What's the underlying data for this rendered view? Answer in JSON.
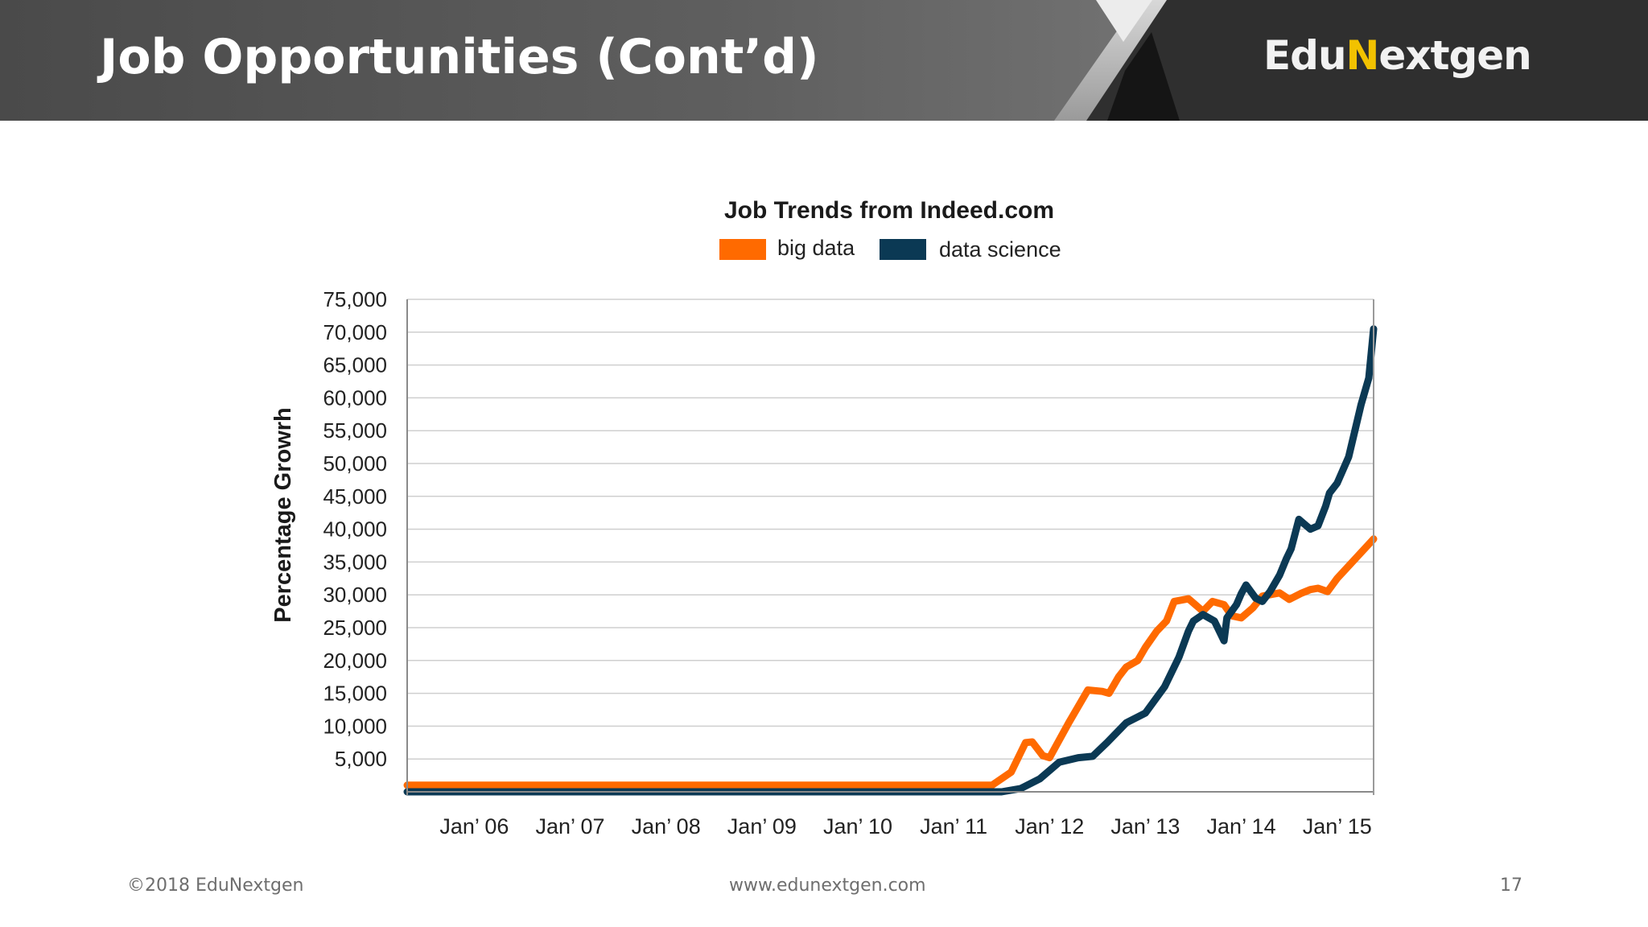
{
  "slide": {
    "title": "Job Opportunities (Cont’d)",
    "logo_prefix": "Edu",
    "logo_mark": "N",
    "logo_suffix": "extgen"
  },
  "footer": {
    "copyright": "©2018 EduNextgen",
    "url": "www.edunextgen.com",
    "page_number": "17"
  },
  "colors": {
    "big_data": "#ff6a00",
    "data_science": "#0b3954",
    "grid": "#cfcfcf"
  },
  "chart_data": {
    "type": "line",
    "title": "Job Trends from Indeed.com",
    "ylabel": "Percentage Growrh",
    "xlabel": "",
    "ylim": [
      0,
      75000
    ],
    "xlim": [
      2005.3,
      2015.38
    ],
    "y_ticks": [
      5000,
      10000,
      15000,
      20000,
      25000,
      30000,
      35000,
      40000,
      45000,
      50000,
      55000,
      60000,
      65000,
      70000,
      75000
    ],
    "y_tick_labels": [
      "5,000",
      "10,000",
      "15,000",
      "20,000",
      "25,000",
      "30,000",
      "35,000",
      "40,000",
      "45,000",
      "50,000",
      "55,000",
      "60,000",
      "65,000",
      "70,000",
      "75,000"
    ],
    "x_ticks": [
      2006,
      2007,
      2008,
      2009,
      2010,
      2011,
      2012,
      2013,
      2014,
      2015
    ],
    "x_tick_labels": [
      "Jan’ 06",
      "Jan’ 07",
      "Jan’ 08",
      "Jan’ 09",
      "Jan’ 10",
      "Jan’ 11",
      "Jan’ 12",
      "Jan’ 13",
      "Jan’ 14",
      "Jan’ 15"
    ],
    "grid": true,
    "legend_position": "top-center",
    "series": [
      {
        "name": "big data",
        "color": "#ff6a00",
        "x": [
          2005.3,
          2011.4,
          2011.6,
          2011.75,
          2011.82,
          2011.93,
          2012.0,
          2012.2,
          2012.4,
          2012.55,
          2012.62,
          2012.72,
          2012.8,
          2012.92,
          2013.0,
          2013.12,
          2013.22,
          2013.3,
          2013.45,
          2013.52,
          2013.6,
          2013.7,
          2013.82,
          2013.9,
          2014.0,
          2014.12,
          2014.22,
          2014.4,
          2014.5,
          2014.62,
          2014.72,
          2014.8,
          2014.9,
          2015.0,
          2015.38
        ],
        "values": [
          1000,
          1000,
          3000,
          7500,
          7600,
          5500,
          5200,
          10500,
          15500,
          15300,
          15000,
          17500,
          19000,
          20000,
          22000,
          24500,
          26000,
          29000,
          29400,
          28500,
          27500,
          29000,
          28500,
          26800,
          26500,
          28000,
          29800,
          30300,
          29300,
          30200,
          30800,
          31000,
          30500,
          32500,
          38500
        ]
      },
      {
        "name": "data science",
        "color": "#0b3954",
        "x": [
          2005.3,
          2011.5,
          2011.7,
          2011.9,
          2012.1,
          2012.3,
          2012.45,
          2012.6,
          2012.8,
          2013.0,
          2013.2,
          2013.35,
          2013.45,
          2013.5,
          2013.6,
          2013.72,
          2013.82,
          2013.85,
          2013.95,
          2014.0,
          2014.05,
          2014.15,
          2014.22,
          2014.3,
          2014.4,
          2014.47,
          2014.52,
          2014.6,
          2014.68,
          2014.72,
          2014.8,
          2014.88,
          2014.92,
          2015.0,
          2015.12,
          2015.25,
          2015.33,
          2015.38
        ],
        "values": [
          0,
          0,
          500,
          2000,
          4500,
          5200,
          5400,
          7500,
          10500,
          12000,
          16000,
          20500,
          24500,
          26000,
          27000,
          26000,
          23000,
          26500,
          28500,
          30200,
          31500,
          29500,
          29000,
          30500,
          33000,
          35500,
          37000,
          41500,
          40500,
          40000,
          40500,
          43500,
          45500,
          47000,
          51000,
          59000,
          63000,
          70500
        ]
      }
    ]
  }
}
